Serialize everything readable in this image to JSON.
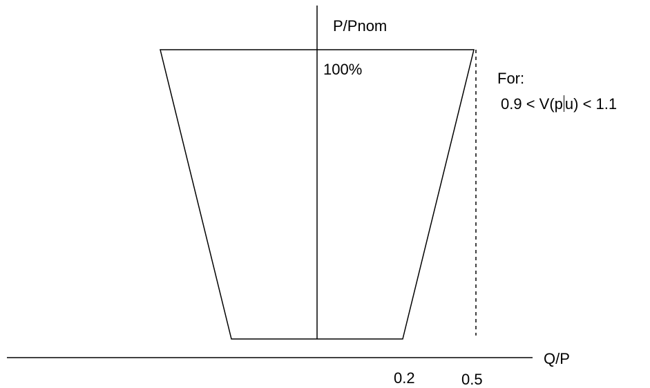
{
  "diagram": {
    "y_axis_label": "P/Pnom",
    "x_axis_label": "Q/P",
    "top_label": "100%",
    "condition": {
      "line1": "For:",
      "line2_before_cursor": "0.9 < V(p",
      "line2_after_cursor": "u) < 1.1"
    },
    "x_ticks": [
      "0.2",
      "0.5"
    ],
    "colors": {
      "line": "#000000",
      "background": "#ffffff"
    }
  }
}
